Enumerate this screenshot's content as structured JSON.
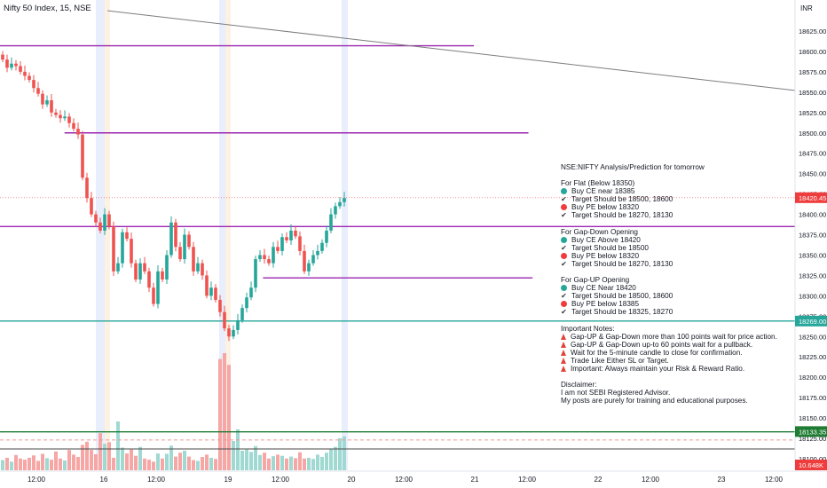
{
  "header": {
    "title": "Nifty 50 Index, 15, NSE"
  },
  "chart_data": {
    "type": "candlestick",
    "title": "Nifty 50 Index, 15, NSE",
    "currency": "INR",
    "price_axis": {
      "ylim": [
        18090,
        18650
      ],
      "ticks": [
        18625,
        18600,
        18575,
        18550,
        18525,
        18500,
        18475,
        18450,
        18425,
        18400,
        18375,
        18350,
        18325,
        18300,
        18275,
        18250,
        18225,
        18200,
        18175,
        18150,
        18125,
        18100
      ]
    },
    "time_axis": {
      "labels": [
        "12:00",
        "16",
        "12:00",
        "19",
        "12:00",
        "20",
        "12:00",
        "21",
        "12:00",
        "22",
        "12:00",
        "23",
        "12:00"
      ]
    },
    "badges": [
      {
        "label": "18420.45",
        "color": "#ef3c3c"
      },
      {
        "label": "18269.00",
        "color": "#26a69a"
      },
      {
        "label": "18133.35",
        "color": "#1e7d32"
      },
      {
        "label": "10.648K",
        "color": "#ef3c3c"
      }
    ],
    "candles_close": [
      18590,
      18580,
      18585,
      18582,
      18575,
      18570,
      18565,
      18555,
      18548,
      18535,
      18540,
      18525,
      18522,
      18518,
      18520,
      18512,
      18505,
      18498,
      18445,
      18420,
      18400,
      18390,
      18380,
      18400,
      18385,
      18330,
      18340,
      18378,
      18370,
      18340,
      18320,
      18340,
      18330,
      18310,
      18290,
      18330,
      18320,
      18350,
      18390,
      18360,
      18345,
      18375,
      18360,
      18330,
      18340,
      18325,
      18300,
      18310,
      18295,
      18280,
      18260,
      18250,
      18258,
      18270,
      18285,
      18298,
      18310,
      18345,
      18350,
      18345,
      18340,
      18360,
      18355,
      18372,
      18368,
      18380,
      18373,
      18355,
      18330,
      18340,
      18350,
      18355,
      18365,
      18380,
      18400,
      18410,
      18415,
      18420
    ],
    "volumes": [
      2.6,
      3.2,
      2.2,
      3.9,
      3.0,
      2.7,
      3.2,
      3.8,
      2.4,
      4.2,
      3.1,
      2.7,
      4.8,
      3.0,
      2.5,
      5.2,
      4.0,
      3.4,
      6.5,
      7.3,
      5.2,
      4.1,
      9.5,
      6.8,
      7.2,
      3.2,
      12.5,
      5.8,
      4.3,
      5.3,
      3.7,
      6.0,
      3.0,
      2.7,
      2.2,
      4.3,
      3.0,
      4.2,
      6.3,
      3.5,
      4.5,
      5.0,
      3.5,
      2.6,
      2.4,
      3.4,
      4.0,
      3.2,
      2.9,
      28.5,
      30.0,
      27.0,
      7.5,
      10.5,
      5.0,
      5.3,
      4.7,
      6.2,
      3.9,
      4.5,
      3.0,
      3.6,
      4.0,
      3.7,
      3.0,
      3.5,
      3.1,
      4.6,
      3.0,
      3.2,
      2.9,
      4.0,
      3.4,
      4.5,
      5.4,
      6.0,
      8.2,
      8.7
    ],
    "volume_max": 30,
    "levels": [
      {
        "name": "purple-level-top",
        "price": 18607,
        "color": "#9c27b0",
        "x_from": 0,
        "x_to": 0.573
      },
      {
        "name": "purple-level-18500",
        "price": 18500,
        "color": "#9c27b0",
        "x_from": 0.078,
        "x_to": 0.639
      },
      {
        "name": "purple-level-18385",
        "price": 18385,
        "color": "#9c27b0",
        "x_from": 0,
        "x_to": 0.962
      },
      {
        "name": "purple-level-18320",
        "price": 18322,
        "color": "#9c27b0",
        "x_from": 0.318,
        "x_to": 0.644
      },
      {
        "name": "teal-level-18269",
        "price": 18269,
        "color": "#26a69a",
        "x_from": 0,
        "x_to": 0.962
      },
      {
        "name": "green-level-18133",
        "price": 18133,
        "color": "#1e7d32",
        "x_from": 0,
        "x_to": 0.962
      },
      {
        "name": "dashed-red-level",
        "price": 18123,
        "color": "#ef9a9a",
        "x_from": 0,
        "x_to": 0.962
      },
      {
        "name": "dark-level-18112",
        "price": 18112,
        "color": "#4a4a4a",
        "x_from": 0,
        "x_to": 0.962
      }
    ],
    "trendline": {
      "from": {
        "x": 0.13,
        "price": 18650
      },
      "to": {
        "x": 0.962,
        "price": 18552
      },
      "color": "#7d7d7d"
    }
  },
  "annotation": {
    "title": "NSE:NIFTY Analysis/Prediction for tomorrow",
    "sections": [
      {
        "heading": "For Flat (Below 18350)",
        "lines": [
          {
            "icon": "green-dot-icon",
            "text": "Buy CE near 18385"
          },
          {
            "icon": "check-icon",
            "text": "Target Should be 18500, 18600"
          },
          {
            "icon": "red-dot-icon",
            "text": "Buy PE below 18320"
          },
          {
            "icon": "check-icon",
            "text": "Target Should be 18270, 18130"
          }
        ]
      },
      {
        "heading": "For Gap-Down Opening",
        "lines": [
          {
            "icon": "green-dot-icon",
            "text": "Buy CE Above 18420"
          },
          {
            "icon": "check-icon",
            "text": "Target Should be 18500"
          },
          {
            "icon": "red-dot-icon",
            "text": "Buy PE below 18320"
          },
          {
            "icon": "check-icon",
            "text": "Target Should be 18270, 18130"
          }
        ]
      },
      {
        "heading": "For Gap-UP Opening",
        "lines": [
          {
            "icon": "green-dot-icon",
            "text": "Buy CE Near 18420"
          },
          {
            "icon": "check-icon",
            "text": "Target Should be 18500, 18600"
          },
          {
            "icon": "red-dot-icon",
            "text": "Buy PE below 18385"
          },
          {
            "icon": "check-icon",
            "text": "Target Should be 18325, 18270"
          }
        ]
      }
    ],
    "notes_heading": "Important Notes:",
    "notes": [
      "Gap-UP & Gap-Down more than 100 points wait for price action.",
      "Gap-UP & Gap-Down up-to 60 points wait for a pullback.",
      "Wait for the 5-minute candle to close for confirmation.",
      "Trade Like Either SL or Target.",
      "Important: Always maintain your Risk & Reward Ratio."
    ],
    "disclaimer_heading": "Disclaimer:",
    "disclaimer": [
      "I am not SEBI Registered Advisor.",
      "My posts are purely for training and educational purposes."
    ]
  }
}
